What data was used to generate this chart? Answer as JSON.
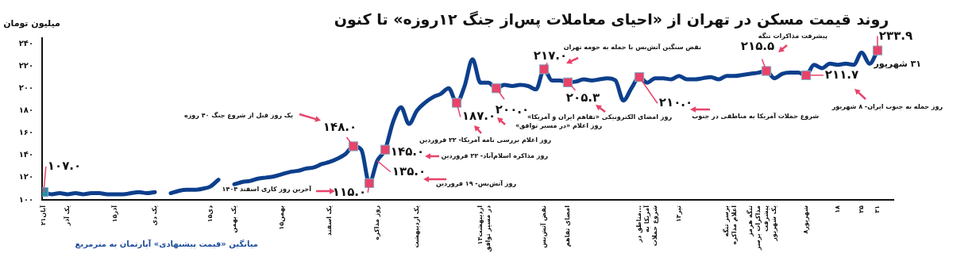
{
  "chart_data": {
    "type": "line",
    "title": "روند قیمت مسکن در تهران از «احیای معاملات پس‌از جنگ ۱۲روزه» تا کنون",
    "ylabel": "میلیون تومان",
    "ylim": [
      100,
      245
    ],
    "categories": [
      "۲۱آبان",
      null,
      null,
      "یک آذر",
      null,
      null,
      null,
      null,
      null,
      "۱۵آذر",
      null,
      null,
      null,
      null,
      "یک دی",
      null,
      null,
      null,
      null,
      null,
      null,
      "۱۵دی",
      null,
      null,
      "یک بهمن",
      null,
      null,
      null,
      null,
      null,
      "۱۵بهمن",
      null,
      null,
      null,
      null,
      null,
      "یک اسفند",
      null,
      null,
      null,
      null,
      null,
      "روز مذاکره",
      null,
      null,
      null,
      null,
      "یک اردیبهشت",
      null,
      null,
      null,
      null,
      null,
      null,
      null,
      "۱۳اردیبهشت",
      "در مسیر توافق",
      null,
      null,
      null,
      null,
      null,
      null,
      "نقض آتش‌بس",
      null,
      null,
      "امضای تفاهم",
      null,
      null,
      null,
      null,
      null,
      null,
      null,
      null,
      "مناطق در...",
      "آمریکا به",
      "شروع حملات",
      null,
      null,
      "۱۳تیر",
      null,
      null,
      null,
      null,
      null,
      "برسر تنگه",
      "اعلام مذاکره",
      null,
      "تنگه هرمز",
      "مذاکرات برسر",
      "پیشرفت",
      "یک شهریور",
      null,
      null,
      null,
      "۸شهریور",
      null,
      null,
      null,
      "۱۸",
      null,
      null,
      "۲۵",
      null,
      "۳۱"
    ],
    "yticks": [
      {
        "value": 100,
        "label": "۱۰۰"
      },
      {
        "value": 120,
        "label": "۱۲۰"
      },
      {
        "value": 140,
        "label": "۱۴۰"
      },
      {
        "value": 160,
        "label": "۱۶۰"
      },
      {
        "value": 180,
        "label": "۱۸۰"
      },
      {
        "value": 200,
        "label": "۲۰۰"
      },
      {
        "value": 220,
        "label": "۲۲۰"
      },
      {
        "value": 240,
        "label": "۲۴۰"
      }
    ],
    "series": [
      {
        "type": "line",
        "color": "#0d3f8c",
        "values": [
          107,
          105,
          106,
          105,
          106,
          105,
          106,
          106,
          105,
          105,
          105,
          106,
          107,
          106,
          107,
          null,
          106,
          108,
          109,
          109,
          110,
          112,
          118,
          null,
          114,
          116,
          117,
          119,
          120,
          121,
          123,
          125,
          126,
          128,
          129,
          132,
          134,
          137,
          141,
          148,
          145,
          115,
          135,
          145,
          170,
          183,
          168,
          180,
          187,
          192,
          195,
          200,
          187,
          202,
          226,
          205,
          205,
          200,
          203,
          202,
          203,
          202,
          199,
          217,
          207,
          207,
          205.3,
          206,
          208,
          207,
          208,
          209,
          207,
          189,
          200,
          210,
          205,
          209,
          209,
          208,
          211,
          208,
          208,
          209,
          210,
          208,
          211,
          211,
          212,
          213,
          214,
          215.5,
          209,
          213,
          214,
          214,
          211.7,
          221,
          218,
          222,
          221,
          222,
          221,
          232,
          222,
          233.9
        ],
        "value_labels": [
          null,
          null,
          null,
          null,
          null,
          null,
          null,
          null,
          null,
          null,
          null,
          null,
          null,
          null,
          null,
          null,
          null,
          null,
          null,
          null,
          null,
          null,
          null,
          null,
          null,
          null,
          null,
          null,
          null,
          null,
          null,
          null,
          null,
          null,
          null,
          null,
          null,
          null,
          null,
          null,
          null,
          null,
          "۱۳۵.۰",
          null,
          null,
          null,
          null,
          null,
          null,
          null,
          null,
          null,
          null,
          null,
          null,
          null,
          null,
          null,
          null,
          null,
          null,
          null,
          null,
          null,
          null,
          null,
          null,
          null,
          null,
          null,
          null,
          null,
          null,
          null,
          null,
          null,
          null,
          null,
          null,
          null,
          null,
          null,
          null,
          null,
          null,
          null,
          null,
          null,
          null,
          null,
          null,
          null,
          null,
          null,
          null,
          null,
          null,
          null,
          null,
          null,
          null,
          null,
          null,
          null,
          null,
          null
        ]
      },
      {
        "type": "scatter",
        "marker": "square",
        "color": "#2e8ba6",
        "values": [
          107,
          null,
          null,
          null,
          null,
          null,
          null,
          null,
          null,
          null,
          null,
          null,
          null,
          null,
          null,
          null,
          null,
          null,
          null,
          null,
          null,
          null,
          null,
          null,
          null,
          null,
          null,
          null,
          null,
          null,
          null,
          null,
          null,
          null,
          null,
          null,
          null,
          null,
          null,
          null,
          null,
          null,
          null,
          null,
          null,
          null,
          null,
          null,
          null,
          null,
          null,
          null,
          null,
          null,
          null,
          null,
          null,
          null,
          null,
          null,
          null,
          null,
          null,
          null,
          null,
          null,
          null,
          null,
          null,
          null,
          null,
          null,
          null,
          null,
          null,
          null,
          null,
          null,
          null,
          null,
          null,
          null,
          null,
          null,
          null,
          null,
          null,
          null,
          null,
          null,
          null,
          null,
          null,
          null,
          null,
          null,
          null,
          null,
          null,
          null,
          null,
          null,
          null,
          null,
          null,
          null
        ],
        "value_labels": [
          "۱۰۷.۰",
          null,
          null,
          null,
          null,
          null,
          null,
          null,
          null,
          null,
          null,
          null,
          null,
          null,
          null,
          null,
          null,
          null,
          null,
          null,
          null,
          null,
          null,
          null,
          null,
          null,
          null,
          null,
          null,
          null,
          null,
          null,
          null,
          null,
          null,
          null,
          null,
          null,
          null,
          null,
          null,
          null,
          null,
          null,
          null,
          null,
          null,
          null,
          null,
          null,
          null,
          null,
          null,
          null,
          null,
          null,
          null,
          null,
          null,
          null,
          null,
          null,
          null,
          null,
          null,
          null,
          null,
          null,
          null,
          null,
          null,
          null,
          null,
          null,
          null,
          null,
          null,
          null,
          null,
          null,
          null,
          null,
          null,
          null,
          null,
          null,
          null,
          null,
          null,
          null,
          null,
          null,
          null,
          null,
          null,
          null,
          null,
          null,
          null,
          null,
          null,
          null,
          null,
          null,
          null,
          null
        ]
      },
      {
        "type": "scatter",
        "marker": "square",
        "color": "#e8436a",
        "values": [
          null,
          null,
          null,
          null,
          null,
          null,
          null,
          null,
          null,
          null,
          null,
          null,
          null,
          null,
          null,
          null,
          null,
          null,
          null,
          null,
          null,
          null,
          null,
          null,
          null,
          null,
          null,
          null,
          null,
          null,
          null,
          null,
          null,
          null,
          null,
          null,
          null,
          null,
          null,
          148,
          null,
          115,
          null,
          145,
          null,
          null,
          null,
          null,
          null,
          null,
          null,
          null,
          187,
          null,
          null,
          null,
          null,
          200,
          null,
          null,
          null,
          null,
          null,
          217,
          null,
          null,
          205.3,
          null,
          null,
          null,
          null,
          null,
          null,
          null,
          null,
          210,
          null,
          null,
          null,
          null,
          null,
          null,
          null,
          null,
          null,
          null,
          null,
          null,
          null,
          null,
          null,
          215.5,
          null,
          null,
          null,
          null,
          211.7,
          null,
          null,
          null,
          null,
          null,
          null,
          null,
          null,
          233.9
        ],
        "value_labels": [
          null,
          null,
          null,
          null,
          null,
          null,
          null,
          null,
          null,
          null,
          null,
          null,
          null,
          null,
          null,
          null,
          null,
          null,
          null,
          null,
          null,
          null,
          null,
          null,
          null,
          null,
          null,
          null,
          null,
          null,
          null,
          null,
          null,
          null,
          null,
          null,
          null,
          null,
          null,
          "۱۴۸.۰",
          null,
          "۱۱۵.۰",
          null,
          "۱۴۵.۰",
          null,
          null,
          null,
          null,
          null,
          null,
          null,
          null,
          "۱۸۷.۰",
          null,
          null,
          null,
          null,
          "۲۰۰.۰",
          null,
          null,
          null,
          null,
          null,
          "۲۱۷.۰",
          null,
          null,
          "۲۰۵.۳",
          null,
          null,
          null,
          null,
          null,
          null,
          null,
          null,
          "۲۱۰.۰",
          null,
          null,
          null,
          null,
          null,
          null,
          null,
          null,
          null,
          null,
          null,
          null,
          null,
          null,
          null,
          "۲۱۵.۵",
          null,
          null,
          null,
          null,
          "۲۱۱.۷",
          null,
          null,
          null,
          null,
          null,
          null,
          null,
          null,
          "۲۳۳.۹"
        ]
      }
    ],
    "annotations": [
      "یک روز قبل از شروع جنگ ۴۰ روزه",
      "آخرین روز کاری اسفند ۱۴۰۴",
      "روز آتش‌بس- ۱۹ فروردین",
      "روز مذاکره اسلام‌آباد- ۲۲ فروردین",
      "روز اعلام بررسی نامه آمریکا- ۲۲ فروردین",
      "روز اعلام «در مسیر توافق»",
      "روز امضای الکترونیکی «تفاهم ایران و آمریکا»",
      "نقض سنگین آتش‌بس با حمله به حومه تهران",
      "شروع حملات آمریکا به مناطقی در جنوب",
      "پیشرفت مذاکرات تنگه",
      "روز حمله به جنوب ایران- ۸ شهریور",
      "۳۱ شهریور",
      "میانگین «قیمت پیشنهادی» آپارتمان به مترمربع"
    ]
  }
}
